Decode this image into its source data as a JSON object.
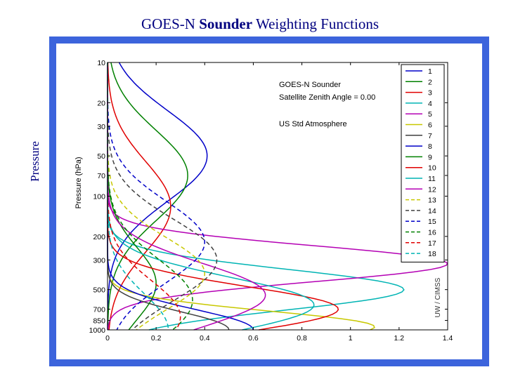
{
  "slide": {
    "title_prefix": "GOES-N ",
    "title_bold": "Sounder",
    "title_suffix": " Weighting Functions",
    "side_label": "Pressure"
  },
  "chart_data": {
    "type": "line",
    "title": "",
    "xlabel": "",
    "ylabel": "Pressure (hPa)",
    "xlim": [
      0,
      1.4
    ],
    "ylim": [
      1000,
      10
    ],
    "y_scale": "log",
    "x_ticks": [
      "0",
      "0.2",
      "0.4",
      "0.6",
      "0.8",
      "1",
      "1.2",
      "1.4"
    ],
    "y_ticks": [
      10,
      20,
      30,
      50,
      70,
      100,
      200,
      300,
      500,
      700,
      850,
      1000
    ],
    "annotations": [
      "GOES-N Sounder",
      "Satellite Zenith Angle = 0.00",
      "US Std Atmosphere"
    ],
    "watermark": "UW / CIMSS",
    "legend_position": "top-right",
    "series": [
      {
        "name": "1",
        "color": "#0000c8",
        "dash": false,
        "peak_p": 50,
        "peak_v": 0.41,
        "width": 1.0
      },
      {
        "name": "2",
        "color": "#008000",
        "dash": false,
        "peak_p": 70,
        "peak_v": 0.33,
        "width": 1.0
      },
      {
        "name": "3",
        "color": "#e00000",
        "dash": false,
        "peak_p": 120,
        "peak_v": 0.26,
        "width": 1.0
      },
      {
        "name": "4",
        "color": "#00b4b4",
        "dash": false,
        "peak_p": 500,
        "peak_v": 1.22,
        "width": 0.45
      },
      {
        "name": "5",
        "color": "#b400b4",
        "dash": false,
        "peak_p": 320,
        "peak_v": 1.4,
        "width": 0.4
      },
      {
        "name": "6",
        "color": "#c8c800",
        "dash": false,
        "peak_p": 950,
        "peak_v": 1.1,
        "width": 0.35
      },
      {
        "name": "7",
        "color": "#404040",
        "dash": false,
        "peak_p": 1000,
        "peak_v": 0.5,
        "width": 0.4
      },
      {
        "name": "8",
        "color": "#0000c8",
        "dash": false,
        "peak_p": 1000,
        "peak_v": 0.6,
        "width": 0.45
      },
      {
        "name": "9",
        "color": "#008000",
        "dash": false,
        "peak_p": 450,
        "peak_v": 0.2,
        "width": 0.8
      },
      {
        "name": "10",
        "color": "#e00000",
        "dash": false,
        "peak_p": 700,
        "peak_v": 0.95,
        "width": 0.5
      },
      {
        "name": "11",
        "color": "#00b4b4",
        "dash": false,
        "peak_p": 650,
        "peak_v": 0.85,
        "width": 0.6
      },
      {
        "name": "12",
        "color": "#b400b4",
        "dash": false,
        "peak_p": 550,
        "peak_v": 0.65,
        "width": 0.7
      },
      {
        "name": "13",
        "color": "#c8c800",
        "dash": true,
        "peak_p": 380,
        "peak_v": 0.4,
        "width": 0.8
      },
      {
        "name": "14",
        "color": "#404040",
        "dash": true,
        "peak_p": 300,
        "peak_v": 0.45,
        "width": 0.9
      },
      {
        "name": "15",
        "color": "#0000c8",
        "dash": true,
        "peak_p": 220,
        "peak_v": 0.4,
        "width": 0.9
      },
      {
        "name": "16",
        "color": "#008000",
        "dash": true,
        "peak_p": 600,
        "peak_v": 0.35,
        "width": 0.9
      },
      {
        "name": "17",
        "color": "#e00000",
        "dash": true,
        "peak_p": 800,
        "peak_v": 0.3,
        "width": 0.8
      },
      {
        "name": "18",
        "color": "#00b4b4",
        "dash": true,
        "peak_p": 1000,
        "peak_v": 0.25,
        "width": 0.8
      }
    ]
  }
}
